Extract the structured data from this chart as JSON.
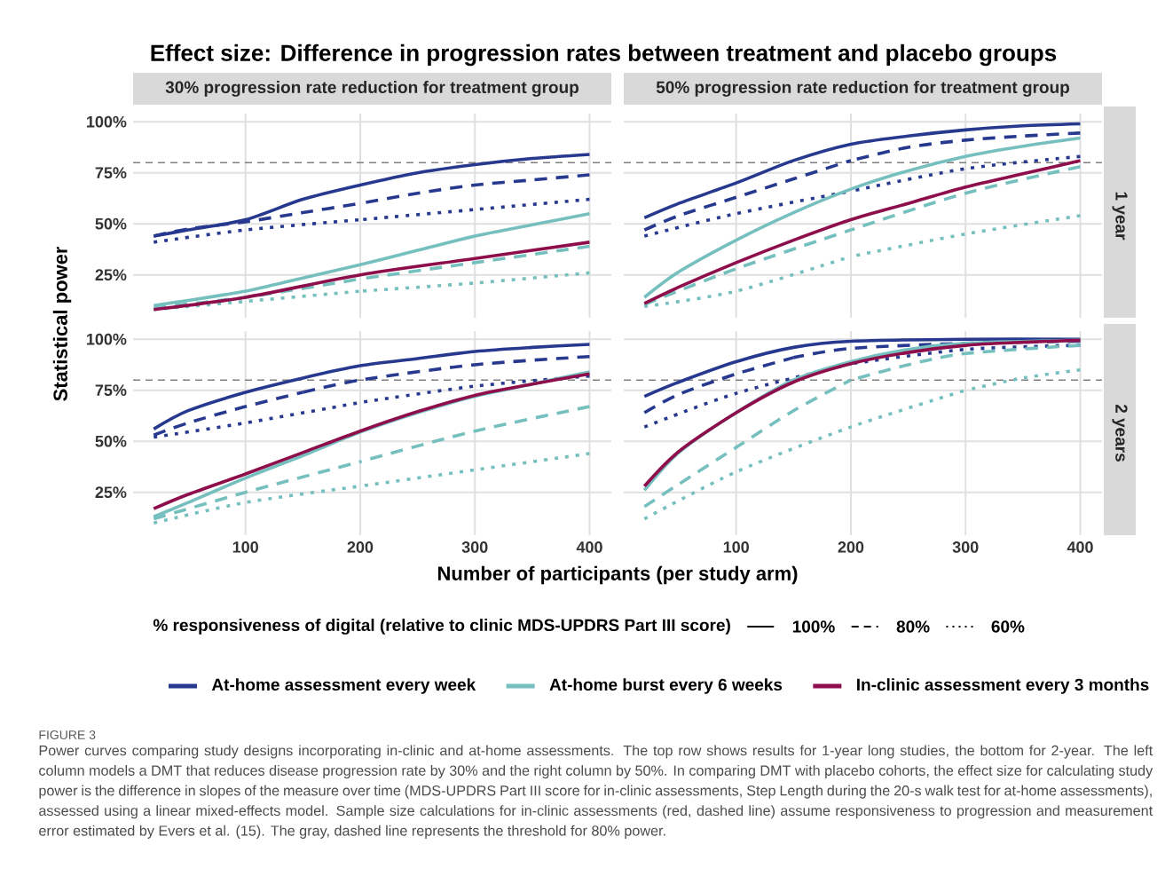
{
  "chart_data": [
    {
      "type": "line",
      "title": "Effect size: Difference in progression rates between treatment and placebo groups",
      "subtitle": "30% progression rate reduction for treatment group",
      "ylabel": "Statistical power",
      "xlim": [
        2,
        419
      ],
      "ylim": [
        4,
        104
      ],
      "xticks": [
        {
          "value": 100,
          "label": null
        },
        {
          "value": 200,
          "label": null
        },
        {
          "value": 300,
          "label": null
        },
        {
          "value": 400,
          "label": null
        }
      ],
      "yticks": [
        {
          "value": 25,
          "label": "25%"
        },
        {
          "value": 50,
          "label": "50%"
        },
        {
          "value": 75,
          "label": "75%"
        },
        {
          "value": 100,
          "label": "100%"
        }
      ],
      "grid": true,
      "tick_labels": "y",
      "legend": "bottom",
      "ref_lines": [
        {
          "axis": "y",
          "value": 80,
          "color": "#7f7f7f",
          "line_style": "dashed"
        }
      ],
      "series": [
        {
          "name": "At-home assessment every week",
          "color": "#27398f",
          "line_style": "solid",
          "x": [
            20,
            50,
            100,
            150,
            200,
            250,
            300,
            350,
            400
          ],
          "values": [
            44,
            47,
            52,
            62,
            69,
            75,
            79,
            82,
            84
          ]
        },
        {
          "color": "#27398f",
          "line_style": "dashed",
          "x": [
            20,
            50,
            100,
            150,
            200,
            250,
            300,
            350,
            400
          ],
          "values": [
            44,
            47.5,
            51,
            55.5,
            60,
            65,
            69,
            71.5,
            74
          ]
        },
        {
          "color": "#27398f",
          "line_style": "dotted",
          "x": [
            20,
            100,
            200,
            300,
            400
          ],
          "values": [
            41,
            47,
            52,
            57,
            62
          ]
        },
        {
          "name": "At-home burst every 6 weeks",
          "color": "#76bfbf",
          "line_style": "solid",
          "x": [
            20,
            50,
            100,
            150,
            200,
            250,
            300,
            350,
            400
          ],
          "values": [
            10,
            12.5,
            17,
            23.5,
            30,
            37,
            44,
            49.5,
            55
          ]
        },
        {
          "color": "#76bfbf",
          "line_style": "dashed",
          "x": [
            20,
            100,
            200,
            300,
            400
          ],
          "values": [
            9,
            14,
            23,
            31,
            39
          ]
        },
        {
          "color": "#76bfbf",
          "line_style": "dotted",
          "x": [
            20,
            100,
            200,
            300,
            400
          ],
          "values": [
            8,
            12,
            17,
            21,
            26
          ]
        },
        {
          "name": "In-clinic assessment every 3 months",
          "color": "#8e0e4c",
          "line_style": "solid",
          "x": [
            20,
            100,
            200,
            300,
            400
          ],
          "values": [
            8,
            14,
            25,
            33,
            41
          ]
        }
      ]
    },
    {
      "type": "line",
      "subtitle": "50% progression rate reduction for treatment group",
      "y2label": "1 year",
      "xlim": [
        2,
        419
      ],
      "ylim": [
        4,
        104
      ],
      "xticks": [
        {
          "value": 100,
          "label": null
        },
        {
          "value": 200,
          "label": null
        },
        {
          "value": 300,
          "label": null
        },
        {
          "value": 400,
          "label": null
        }
      ],
      "yticks": [
        {
          "value": 25,
          "label": null
        },
        {
          "value": 50,
          "label": null
        },
        {
          "value": 75,
          "label": null
        },
        {
          "value": 100,
          "label": null
        }
      ],
      "grid": true,
      "tick_labels": false,
      "ref_lines": [
        {
          "axis": "y",
          "value": 80,
          "color": "#7f7f7f",
          "line_style": "dashed"
        }
      ],
      "series": [
        {
          "color": "#27398f",
          "line_style": "solid",
          "x": [
            20,
            50,
            100,
            150,
            200,
            250,
            300,
            350,
            400
          ],
          "values": [
            53,
            60,
            70,
            81,
            89,
            93,
            96,
            98,
            99
          ]
        },
        {
          "color": "#27398f",
          "line_style": "dashed",
          "x": [
            20,
            50,
            100,
            150,
            200,
            250,
            300,
            350,
            400
          ],
          "values": [
            47,
            54,
            63,
            72,
            81,
            87.5,
            91,
            93,
            94.5
          ]
        },
        {
          "color": "#27398f",
          "line_style": "dotted",
          "x": [
            20,
            100,
            200,
            300,
            400
          ],
          "values": [
            44,
            55,
            66,
            77,
            83
          ]
        },
        {
          "color": "#76bfbf",
          "line_style": "solid",
          "x": [
            20,
            50,
            100,
            150,
            200,
            250,
            300,
            350,
            400
          ],
          "values": [
            14,
            26.5,
            42,
            55.5,
            67,
            76,
            83,
            88,
            92
          ]
        },
        {
          "color": "#76bfbf",
          "line_style": "dashed",
          "x": [
            20,
            100,
            200,
            300,
            400
          ],
          "values": [
            10.5,
            28,
            47,
            65,
            78
          ]
        },
        {
          "color": "#76bfbf",
          "line_style": "dotted",
          "x": [
            20,
            100,
            200,
            300,
            400
          ],
          "values": [
            9.5,
            17,
            34,
            45,
            54
          ]
        },
        {
          "color": "#8e0e4c",
          "line_style": "solid",
          "x": [
            20,
            50,
            100,
            150,
            200,
            250,
            300,
            350,
            400
          ],
          "values": [
            11,
            19,
            31,
            42,
            52,
            60,
            68,
            74.5,
            81
          ]
        }
      ]
    },
    {
      "type": "line",
      "xlabel": "Number of participants (per study arm)",
      "xlim": [
        2,
        419
      ],
      "ylim": [
        4,
        104
      ],
      "xticks": [
        100,
        200,
        300,
        400
      ],
      "yticks": [
        {
          "value": 25,
          "label": "25%"
        },
        {
          "value": 50,
          "label": "50%"
        },
        {
          "value": 75,
          "label": "75%"
        },
        {
          "value": 100,
          "label": "100%"
        }
      ],
      "grid": true,
      "ref_lines": [
        {
          "axis": "y",
          "value": 80,
          "color": "#7f7f7f",
          "line_style": "dashed"
        }
      ],
      "series": [
        {
          "color": "#27398f",
          "line_style": "solid",
          "x": [
            20,
            50,
            100,
            150,
            200,
            250,
            300,
            350,
            400
          ],
          "values": [
            56,
            65,
            74,
            81,
            87,
            90.5,
            94,
            96,
            97.5
          ]
        },
        {
          "color": "#27398f",
          "line_style": "dashed",
          "x": [
            20,
            50,
            100,
            150,
            200,
            300,
            400
          ],
          "values": [
            53,
            59,
            67,
            74,
            80,
            87.5,
            91.5
          ]
        },
        {
          "color": "#27398f",
          "line_style": "dotted",
          "x": [
            20,
            100,
            200,
            300,
            400
          ],
          "values": [
            52,
            59,
            69,
            77,
            82
          ]
        },
        {
          "color": "#76bfbf",
          "line_style": "solid",
          "x": [
            20,
            50,
            100,
            150,
            200,
            250,
            300,
            350,
            400
          ],
          "values": [
            13,
            20,
            32,
            43,
            54.5,
            64,
            72,
            78,
            84
          ]
        },
        {
          "color": "#76bfbf",
          "line_style": "dashed",
          "x": [
            20,
            100,
            200,
            300,
            400
          ],
          "values": [
            12,
            25,
            40,
            55,
            67
          ]
        },
        {
          "color": "#76bfbf",
          "line_style": "dotted",
          "x": [
            20,
            100,
            200,
            300,
            400
          ],
          "values": [
            10,
            20,
            28,
            36,
            44
          ]
        },
        {
          "color": "#8e0e4c",
          "line_style": "solid",
          "x": [
            20,
            50,
            100,
            150,
            200,
            250,
            300,
            350,
            400
          ],
          "values": [
            17,
            24,
            34,
            44.5,
            55,
            64.5,
            72.5,
            78,
            83
          ]
        }
      ]
    },
    {
      "type": "line",
      "y2label": "2 years",
      "xlim": [
        2,
        419
      ],
      "ylim": [
        4,
        104
      ],
      "xticks": [
        100,
        200,
        300,
        400
      ],
      "yticks": [
        {
          "value": 25,
          "label": null
        },
        {
          "value": 50,
          "label": null
        },
        {
          "value": 75,
          "label": null
        },
        {
          "value": 100,
          "label": null
        }
      ],
      "grid": true,
      "tick_labels": "x",
      "ref_lines": [
        {
          "axis": "y",
          "value": 80,
          "color": "#7f7f7f",
          "line_style": "dashed"
        }
      ],
      "series": [
        {
          "color": "#27398f",
          "line_style": "solid",
          "x": [
            20,
            50,
            100,
            150,
            200,
            300,
            400
          ],
          "values": [
            72,
            79,
            89,
            96,
            99,
            100,
            100
          ]
        },
        {
          "color": "#27398f",
          "line_style": "dashed",
          "x": [
            20,
            50,
            100,
            150,
            200,
            300,
            400
          ],
          "values": [
            64,
            73,
            83,
            91,
            95.5,
            98,
            99
          ]
        },
        {
          "color": "#27398f",
          "line_style": "dotted",
          "x": [
            20,
            100,
            200,
            300,
            400
          ],
          "values": [
            57,
            73.5,
            88,
            95,
            97
          ]
        },
        {
          "color": "#76bfbf",
          "line_style": "solid",
          "x": [
            20,
            50,
            100,
            150,
            200,
            250,
            300,
            400
          ],
          "values": [
            26,
            44.5,
            64,
            80,
            89,
            95,
            98,
            99.5
          ]
        },
        {
          "color": "#76bfbf",
          "line_style": "dashed",
          "x": [
            20,
            50,
            100,
            150,
            200,
            250,
            300,
            400
          ],
          "values": [
            18,
            29,
            47,
            65,
            80,
            87.5,
            93,
            97
          ]
        },
        {
          "color": "#76bfbf",
          "line_style": "dotted",
          "x": [
            20,
            100,
            200,
            300,
            350,
            400
          ],
          "values": [
            12,
            35,
            57,
            75,
            81,
            85
          ]
        },
        {
          "color": "#8e0e4c",
          "line_style": "solid",
          "x": [
            20,
            50,
            100,
            150,
            200,
            250,
            300,
            350,
            400
          ],
          "values": [
            28,
            45,
            64,
            79,
            88,
            93.5,
            97,
            98.5,
            99.5
          ]
        }
      ]
    },
    {
      "type": "other",
      "legend_title": "% responsiveness of digital (relative to clinic MDS-UPDRS Part III score)",
      "series": [
        {
          "name": "100%",
          "line_style": "solid"
        },
        {
          "name": "80%",
          "line_style": "dashed"
        },
        {
          "name": "60%",
          "line_style": "dotted"
        }
      ],
      "annotations": [
        "FIGURE 3",
        "Power curves comparing study designs incorporating in-clinic and at-home assessments. The top row shows results for 1-year long studies, the bottom for 2-year. The left column models a DMT that reduces disease progression rate by 30% and the right column by 50%. In comparing DMT with placebo cohorts, the effect size for calculating study power is the difference in slopes of the measure over time (MDS-UPDRS Part III score for in-clinic assessments, Step Length during the 20-s walk test for at-home assessments), assessed using a linear mixed-effects model. Sample size calculations for in-clinic assessments (red, dashed line) assume responsiveness to progression and measurement error estimated by Evers et al. (15). The gray, dashed line represents the threshold for 80% power."
      ]
    }
  ]
}
